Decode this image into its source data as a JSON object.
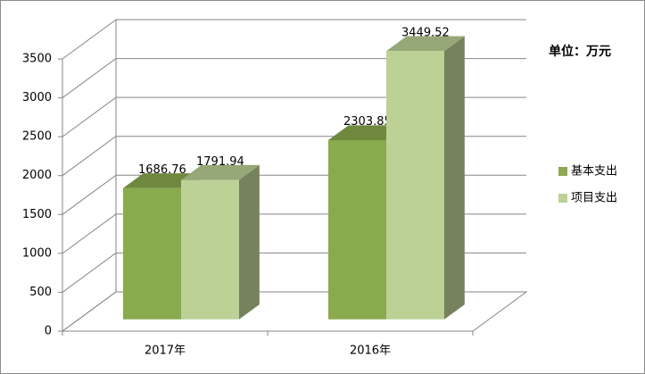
{
  "chart_data": {
    "type": "bar3d",
    "annotation": "单位：万元",
    "categories": [
      "2017年",
      "2016年"
    ],
    "series": [
      {
        "name": "基本支出",
        "color": "#8aaa4e",
        "values": [
          1686.76,
          2303.85
        ]
      },
      {
        "name": "项目支出",
        "color": "#bcd196",
        "values": [
          1791.94,
          3449.52
        ]
      }
    ],
    "ylim": [
      0,
      3500
    ],
    "yticks": [
      0,
      500,
      1000,
      1500,
      2000,
      2500,
      3000,
      3500
    ],
    "grid": true,
    "legend": "right"
  }
}
